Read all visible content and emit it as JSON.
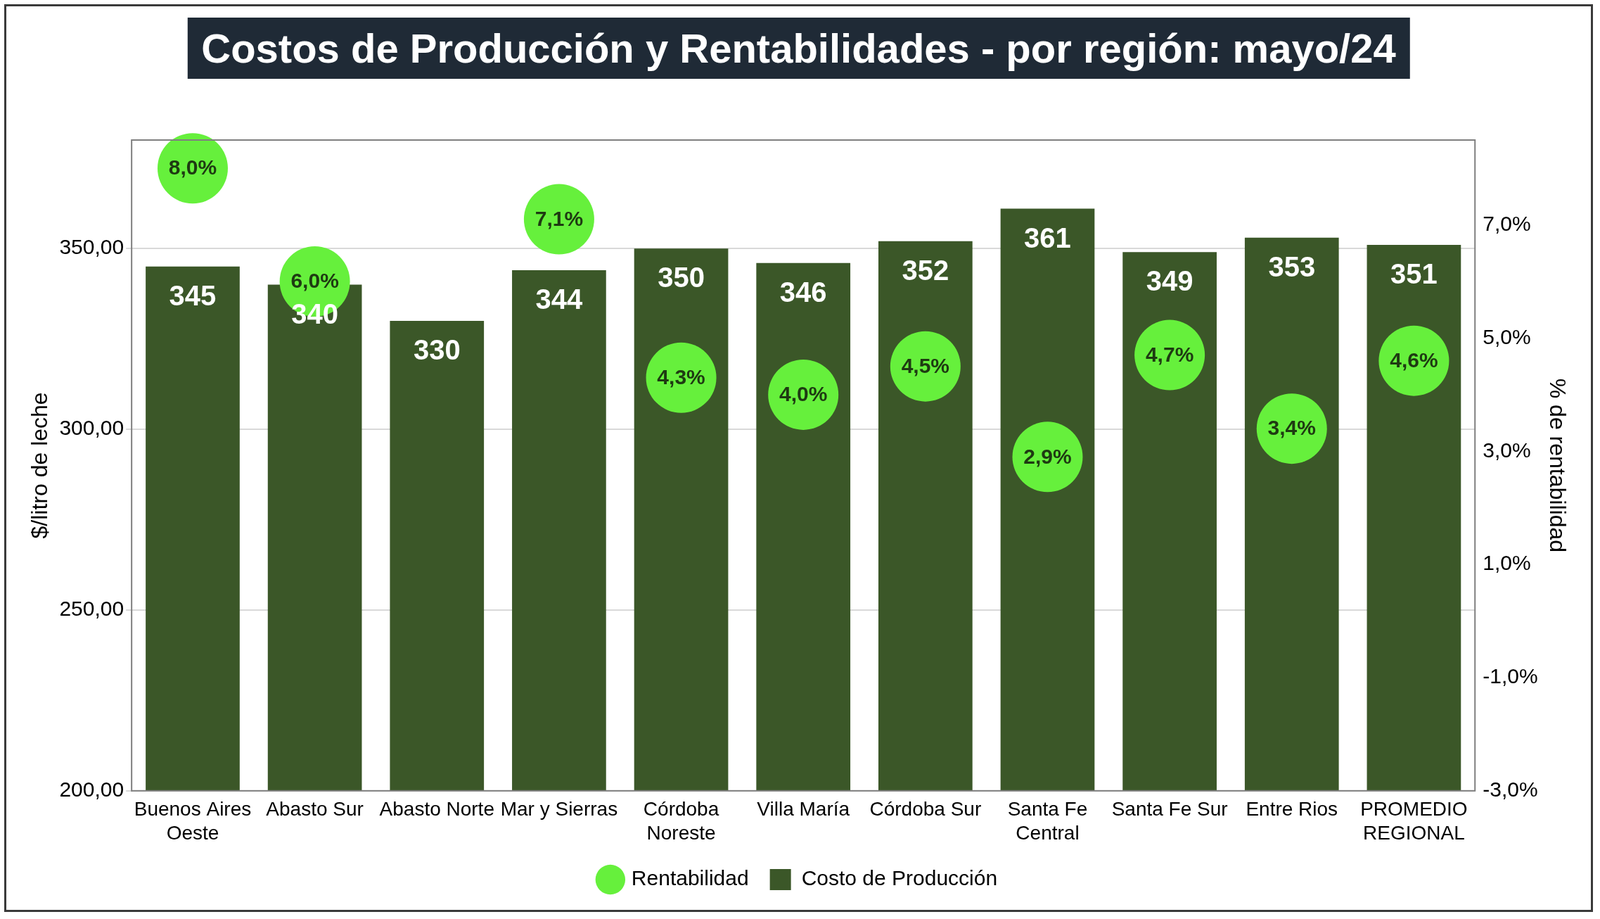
{
  "chart_data": {
    "type": "bar",
    "title": "Costos de Producción y Rentabilidades - por región: mayo/24",
    "y_label": "$/litro de leche",
    "y2_label": "% de rentabilidad",
    "categories": [
      "Buenos Aires Oeste",
      "Abasto Sur",
      "Abasto Norte",
      "Mar y Sierras",
      "Córdoba Noreste",
      "Villa María",
      "Córdoba Sur",
      "Santa Fe Central",
      "Santa Fe Sur",
      "Entre Rios",
      "PROMEDIO REGIONAL"
    ],
    "series": [
      {
        "name": "Costo de Producción",
        "type": "bar",
        "color": "#3b5728",
        "values": [
          345,
          340,
          330,
          344,
          350,
          346,
          352,
          361,
          349,
          353,
          351
        ]
      },
      {
        "name": "Rentabilidad",
        "type": "scatter",
        "axis": "y2",
        "color": "#66f03c",
        "marker": "circle",
        "values": [
          8.0,
          6.0,
          null,
          7.1,
          4.3,
          4.0,
          4.5,
          2.9,
          4.7,
          3.4,
          4.6
        ],
        "value_labels": [
          "8,0%",
          "6,0%",
          null,
          "7,1%",
          "4,3%",
          "4,0%",
          "4,5%",
          "2,9%",
          "4,7%",
          "3,4%",
          "4,6%"
        ]
      }
    ],
    "ylim": [
      200,
      380
    ],
    "yticks": [
      {
        "value": 200,
        "label": "200,00"
      },
      {
        "value": 250,
        "label": "250,00"
      },
      {
        "value": 300,
        "label": "300,00"
      },
      {
        "value": 350,
        "label": "350,00"
      }
    ],
    "y2lim": [
      -3,
      8.5
    ],
    "y2ticks": [
      {
        "value": -3,
        "label": "-3,0%"
      },
      {
        "value": -1,
        "label": "-1,0%"
      },
      {
        "value": 1,
        "label": "1,0%"
      },
      {
        "value": 3,
        "label": "3,0%"
      },
      {
        "value": 5,
        "label": "5,0%"
      },
      {
        "value": 7,
        "label": "7,0%"
      }
    ],
    "grid": true,
    "legend": "bottom",
    "data_labels": true
  }
}
